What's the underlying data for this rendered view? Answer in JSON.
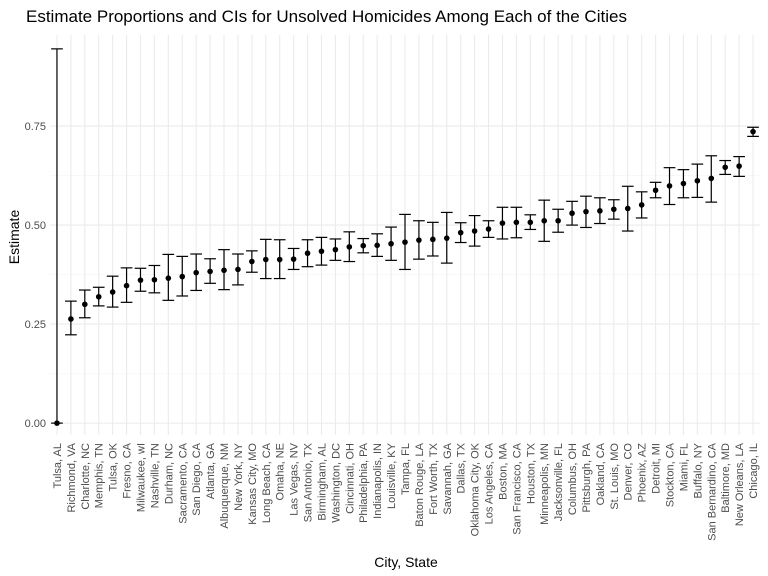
{
  "chart_data": {
    "type": "scatter",
    "title": "Estimate Proportions and CIs for Unsolved Homicides Among Each of the Cities",
    "xlabel": "City, State",
    "ylabel": "Estimate",
    "ylim": [
      -0.03,
      0.98
    ],
    "y_ticks": [
      "0.00",
      "0.25",
      "0.50",
      "0.75"
    ],
    "y_tick_values": [
      0,
      0.25,
      0.5,
      0.75
    ],
    "grid": true,
    "series": [
      {
        "points": [
          {
            "city": "Tulsa, AL",
            "estimate": 0.0,
            "low": 0.0,
            "high": 0.945
          },
          {
            "city": "Richmond, VA",
            "estimate": 0.263,
            "low": 0.223,
            "high": 0.308
          },
          {
            "city": "Charlotte, NC",
            "estimate": 0.3,
            "low": 0.266,
            "high": 0.336
          },
          {
            "city": "Memphis, TN",
            "estimate": 0.319,
            "low": 0.296,
            "high": 0.343
          },
          {
            "city": "Tulsa, OK",
            "estimate": 0.331,
            "low": 0.293,
            "high": 0.371
          },
          {
            "city": "Fresno, CA",
            "estimate": 0.347,
            "low": 0.305,
            "high": 0.392
          },
          {
            "city": "Milwaukee, wI",
            "estimate": 0.361,
            "low": 0.333,
            "high": 0.391
          },
          {
            "city": "Nashville, TN",
            "estimate": 0.362,
            "low": 0.329,
            "high": 0.398
          },
          {
            "city": "Durham, NC",
            "estimate": 0.366,
            "low": 0.31,
            "high": 0.426
          },
          {
            "city": "Sacramento, CA",
            "estimate": 0.37,
            "low": 0.321,
            "high": 0.421
          },
          {
            "city": "San Diego, CA",
            "estimate": 0.38,
            "low": 0.335,
            "high": 0.427
          },
          {
            "city": "Atlanta, GA",
            "estimate": 0.383,
            "low": 0.353,
            "high": 0.415
          },
          {
            "city": "Albuquerque, NM",
            "estimate": 0.386,
            "low": 0.337,
            "high": 0.438
          },
          {
            "city": "New York, NY",
            "estimate": 0.388,
            "low": 0.349,
            "high": 0.427
          },
          {
            "city": "Kansas City, MO",
            "estimate": 0.408,
            "low": 0.381,
            "high": 0.435
          },
          {
            "city": "Long Beach, CA",
            "estimate": 0.413,
            "low": 0.365,
            "high": 0.464
          },
          {
            "city": "Omaha, NE",
            "estimate": 0.413,
            "low": 0.365,
            "high": 0.463
          },
          {
            "city": "Las Vegas, NV",
            "estimate": 0.414,
            "low": 0.388,
            "high": 0.441
          },
          {
            "city": "San Antonio, TX",
            "estimate": 0.429,
            "low": 0.395,
            "high": 0.463
          },
          {
            "city": "Birmingham, AL",
            "estimate": 0.434,
            "low": 0.399,
            "high": 0.469
          },
          {
            "city": "Washington, DC",
            "estimate": 0.438,
            "low": 0.411,
            "high": 0.465
          },
          {
            "city": "Cincinnati, OH",
            "estimate": 0.445,
            "low": 0.408,
            "high": 0.483
          },
          {
            "city": "Philadelphia, PA",
            "estimate": 0.448,
            "low": 0.43,
            "high": 0.466
          },
          {
            "city": "Indianapolis, IN",
            "estimate": 0.449,
            "low": 0.421,
            "high": 0.478
          },
          {
            "city": "Louisville, KY",
            "estimate": 0.453,
            "low": 0.411,
            "high": 0.495
          },
          {
            "city": "Tampa, FL",
            "estimate": 0.457,
            "low": 0.388,
            "high": 0.527
          },
          {
            "city": "Baton Rouge, LA",
            "estimate": 0.462,
            "low": 0.414,
            "high": 0.511
          },
          {
            "city": "Fort Worth, TX",
            "estimate": 0.464,
            "low": 0.422,
            "high": 0.507
          },
          {
            "city": "Savannah, GA",
            "estimate": 0.467,
            "low": 0.404,
            "high": 0.532
          },
          {
            "city": "Dallas, TX",
            "estimate": 0.481,
            "low": 0.456,
            "high": 0.506
          },
          {
            "city": "Oklahoma City, OK",
            "estimate": 0.485,
            "low": 0.447,
            "high": 0.524
          },
          {
            "city": "Los Angeles, CA",
            "estimate": 0.49,
            "low": 0.469,
            "high": 0.511
          },
          {
            "city": "Boston, MA",
            "estimate": 0.505,
            "low": 0.465,
            "high": 0.545
          },
          {
            "city": "San Francisco, CA",
            "estimate": 0.507,
            "low": 0.468,
            "high": 0.545
          },
          {
            "city": "Houston, TX",
            "estimate": 0.507,
            "low": 0.489,
            "high": 0.526
          },
          {
            "city": "Minneapolis, MN",
            "estimate": 0.511,
            "low": 0.459,
            "high": 0.563
          },
          {
            "city": "Jacksonville, FL",
            "estimate": 0.511,
            "low": 0.482,
            "high": 0.54
          },
          {
            "city": "Columbus, OH",
            "estimate": 0.53,
            "low": 0.5,
            "high": 0.56
          },
          {
            "city": "Pittsburgh, PA",
            "estimate": 0.534,
            "low": 0.494,
            "high": 0.573
          },
          {
            "city": "Oakland, CA",
            "estimate": 0.536,
            "low": 0.504,
            "high": 0.569
          },
          {
            "city": "St. Louis, MO",
            "estimate": 0.54,
            "low": 0.515,
            "high": 0.564
          },
          {
            "city": "Denver, CO",
            "estimate": 0.542,
            "low": 0.485,
            "high": 0.598
          },
          {
            "city": "Phoenix, AZ",
            "estimate": 0.551,
            "low": 0.518,
            "high": 0.584
          },
          {
            "city": "Detroit, MI",
            "estimate": 0.588,
            "low": 0.569,
            "high": 0.608
          },
          {
            "city": "Stockton, CA",
            "estimate": 0.599,
            "low": 0.552,
            "high": 0.645
          },
          {
            "city": "Miami, FL",
            "estimate": 0.605,
            "low": 0.569,
            "high": 0.64
          },
          {
            "city": "Buffalo, NY",
            "estimate": 0.612,
            "low": 0.57,
            "high": 0.654
          },
          {
            "city": "San Bernardino, CA",
            "estimate": 0.618,
            "low": 0.558,
            "high": 0.675
          },
          {
            "city": "Baltimore, MD",
            "estimate": 0.646,
            "low": 0.628,
            "high": 0.663
          },
          {
            "city": "New Orleans, LA",
            "estimate": 0.649,
            "low": 0.623,
            "high": 0.673
          },
          {
            "city": "Chicago, IL",
            "estimate": 0.736,
            "low": 0.724,
            "high": 0.747
          }
        ]
      }
    ]
  }
}
